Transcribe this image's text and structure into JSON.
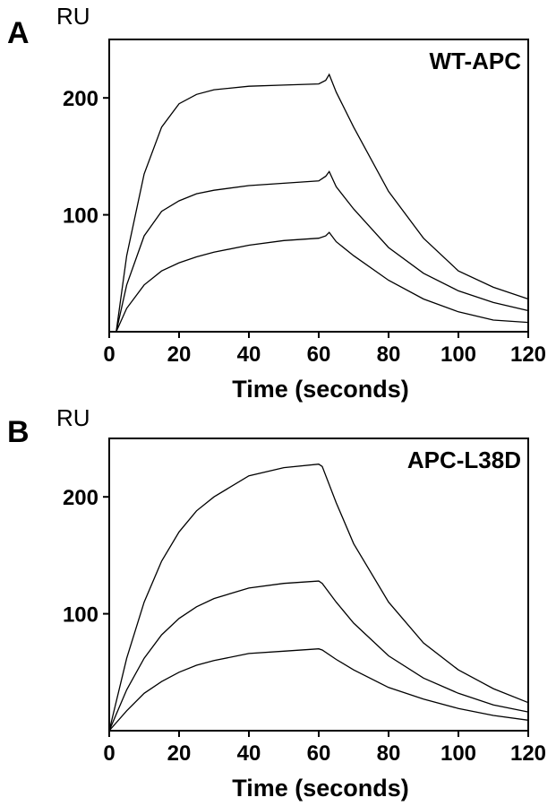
{
  "chart_data": [
    {
      "type": "line",
      "panel": "A",
      "unit": "RU",
      "title": "WT-APC",
      "xlabel": "Time (seconds)",
      "ylabel": "RU",
      "xlim": [
        0,
        120
      ],
      "ylim": [
        0,
        250
      ],
      "xticks": [
        0,
        20,
        40,
        60,
        80,
        100,
        120
      ],
      "yticks": [
        100,
        200
      ],
      "grid": false,
      "x": [
        2,
        5,
        10,
        15,
        20,
        25,
        30,
        40,
        50,
        60,
        62,
        63,
        65,
        70,
        80,
        90,
        100,
        110,
        120
      ],
      "series": [
        {
          "values": [
            0,
            65,
            135,
            175,
            195,
            203,
            207,
            210,
            211,
            212,
            215,
            220,
            205,
            175,
            120,
            80,
            52,
            38,
            28
          ]
        },
        {
          "values": [
            0,
            40,
            82,
            103,
            112,
            118,
            121,
            125,
            127,
            129,
            133,
            137,
            124,
            105,
            72,
            50,
            35,
            25,
            18
          ]
        },
        {
          "values": [
            0,
            20,
            40,
            52,
            59,
            64,
            68,
            74,
            78,
            80,
            82,
            85,
            77,
            65,
            44,
            28,
            17,
            10,
            8
          ]
        }
      ]
    },
    {
      "type": "line",
      "panel": "B",
      "unit": "RU",
      "title": "APC-L38D",
      "xlabel": "Time (seconds)",
      "ylabel": "RU",
      "xlim": [
        0,
        120
      ],
      "ylim": [
        0,
        250
      ],
      "xticks": [
        0,
        20,
        40,
        60,
        80,
        100,
        120
      ],
      "yticks": [
        100,
        200
      ],
      "grid": false,
      "x": [
        0,
        5,
        10,
        15,
        20,
        25,
        30,
        40,
        50,
        60,
        61,
        65,
        70,
        80,
        90,
        100,
        110,
        120
      ],
      "series": [
        {
          "values": [
            0,
            62,
            110,
            145,
            170,
            188,
            200,
            218,
            225,
            228,
            226,
            195,
            160,
            110,
            75,
            52,
            36,
            24
          ]
        },
        {
          "values": [
            0,
            35,
            62,
            82,
            96,
            106,
            113,
            122,
            126,
            128,
            126,
            110,
            92,
            64,
            45,
            32,
            22,
            16
          ]
        },
        {
          "values": [
            0,
            17,
            32,
            42,
            50,
            56,
            60,
            66,
            68,
            70,
            69,
            61,
            52,
            37,
            27,
            19,
            13,
            9
          ]
        }
      ]
    }
  ]
}
